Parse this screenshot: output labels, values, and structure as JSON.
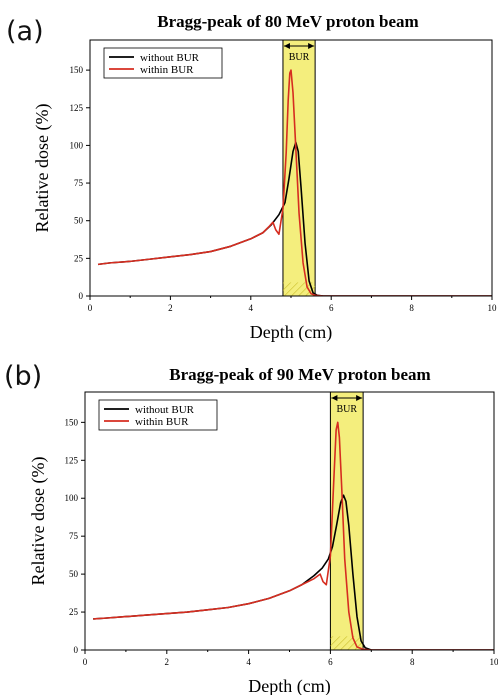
{
  "chart_data": [
    {
      "type": "line",
      "panel_label": "(a)",
      "title": "Bragg-peak of 80 MeV proton beam",
      "xlabel": "Depth (cm)",
      "ylabel": "Relative dose (%)",
      "xlim": [
        0,
        10
      ],
      "ylim": [
        0,
        170
      ],
      "xticks": [
        0,
        2,
        4,
        6,
        8,
        10
      ],
      "yticks": [
        0,
        25,
        50,
        75,
        100,
        125,
        150
      ],
      "grid": false,
      "legend_position": "top-left",
      "region": {
        "label": "BUR",
        "x": [
          4.8,
          5.6
        ],
        "color": "#f4ee7d"
      },
      "series": [
        {
          "name": "without BUR",
          "color": "#000000",
          "x": [
            0.2,
            0.5,
            1.0,
            1.5,
            2.0,
            2.5,
            3.0,
            3.5,
            4.0,
            4.3,
            4.5,
            4.7,
            4.85,
            4.95,
            5.05,
            5.12,
            5.18,
            5.25,
            5.35,
            5.45,
            5.55,
            5.65,
            5.8,
            10.0
          ],
          "values": [
            21,
            22,
            23,
            24.5,
            26,
            27.5,
            29.5,
            33,
            38,
            42,
            47,
            54,
            62,
            78,
            96,
            102,
            96,
            72,
            35,
            10,
            2,
            0.5,
            0,
            0
          ]
        },
        {
          "name": "within BUR",
          "color": "#d62d20",
          "x": [
            0.2,
            0.5,
            1.0,
            1.5,
            2.0,
            2.5,
            3.0,
            3.5,
            4.0,
            4.3,
            4.45,
            4.55,
            4.62,
            4.7,
            4.8,
            4.88,
            4.93,
            4.97,
            5.0,
            5.05,
            5.12,
            5.2,
            5.3,
            5.4,
            5.5,
            5.6,
            5.8,
            10.0
          ],
          "values": [
            21,
            22,
            23,
            24.5,
            26,
            27.5,
            29.5,
            33,
            38,
            42,
            46,
            49,
            44,
            41,
            58,
            95,
            130,
            148,
            150,
            135,
            98,
            55,
            22,
            6,
            1.5,
            0.5,
            0,
            0
          ]
        }
      ]
    },
    {
      "type": "line",
      "panel_label": "(b)",
      "title": "Bragg-peak of 90 MeV proton beam",
      "xlabel": "Depth (cm)",
      "ylabel": "Relative dose (%)",
      "xlim": [
        0,
        10
      ],
      "ylim": [
        0,
        170
      ],
      "xticks": [
        0,
        2,
        4,
        6,
        8,
        10
      ],
      "yticks": [
        0,
        25,
        50,
        75,
        100,
        125,
        150
      ],
      "grid": false,
      "legend_position": "top-left",
      "region": {
        "label": "BUR",
        "x": [
          6.0,
          6.8
        ],
        "color": "#f4ee7d"
      },
      "series": [
        {
          "name": "without BUR",
          "color": "#000000",
          "x": [
            0.2,
            0.5,
            1.0,
            1.5,
            2.0,
            2.5,
            3.0,
            3.5,
            4.0,
            4.5,
            5.0,
            5.3,
            5.6,
            5.8,
            5.95,
            6.05,
            6.15,
            6.25,
            6.32,
            6.38,
            6.45,
            6.55,
            6.65,
            6.75,
            6.85,
            7.0,
            10.0
          ],
          "values": [
            20.5,
            21,
            22,
            23,
            24,
            25,
            26.5,
            28,
            30.5,
            34,
            39,
            43,
            49,
            54,
            60,
            68,
            82,
            97,
            102,
            98,
            82,
            50,
            22,
            6,
            1.5,
            0,
            0
          ]
        },
        {
          "name": "within BUR",
          "color": "#d62d20",
          "x": [
            0.2,
            0.5,
            1.0,
            1.5,
            2.0,
            2.5,
            3.0,
            3.5,
            4.0,
            4.5,
            5.0,
            5.3,
            5.6,
            5.75,
            5.82,
            5.9,
            6.0,
            6.08,
            6.14,
            6.18,
            6.22,
            6.28,
            6.35,
            6.45,
            6.55,
            6.65,
            6.8,
            7.0,
            10.0
          ],
          "values": [
            20.5,
            21,
            22,
            23,
            24,
            25,
            26.5,
            28,
            30.5,
            34,
            39,
            43,
            47,
            50,
            45,
            43,
            62,
            110,
            145,
            150,
            140,
            105,
            60,
            25,
            8,
            2,
            0.5,
            0,
            0
          ]
        }
      ]
    }
  ]
}
